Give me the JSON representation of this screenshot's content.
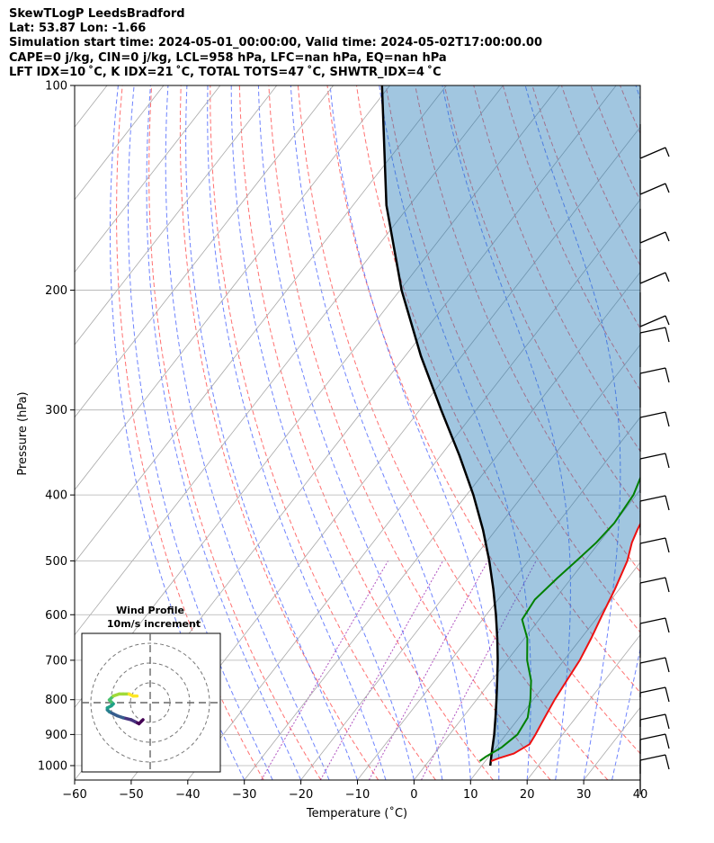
{
  "header": {
    "line1": "SkewTLogP LeedsBradford",
    "line2": "Lat: 53.87   Lon: -1.66",
    "line3": "Simulation start time: 2024-05-01_00:00:00, Valid time: 2024-05-02T17:00:00.00",
    "line4": "CAPE=0 j/kg, CIN=0 j/kg, LCL=958 hPa, LFC=nan hPa, EQ=nan hPa",
    "line5": "LFT IDX=10 ˚C, K IDX=21 ˚C, TOTAL TOTS=47 ˚C, SHWTR_IDX=4 ˚C"
  },
  "chart_data": {
    "type": "line",
    "chart_kind": "skew-T log-P",
    "xlabel": "Temperature (˚C)",
    "ylabel": "Pressure (hPa)",
    "xlim": [
      -60,
      40
    ],
    "ylim": [
      1050,
      100
    ],
    "y_scale": "log",
    "grid": true,
    "x_ticks": [
      "−60",
      "−50",
      "−40",
      "−30",
      "−20",
      "−10",
      "0",
      "10",
      "20",
      "30",
      "40"
    ],
    "y_ticks": [
      {
        "p": 100,
        "label": "100"
      },
      {
        "p": 200,
        "label": "200"
      },
      {
        "p": 300,
        "label": "300"
      },
      {
        "p": 400,
        "label": "400"
      },
      {
        "p": 500,
        "label": "500"
      },
      {
        "p": 600,
        "label": "600"
      },
      {
        "p": 700,
        "label": "700"
      },
      {
        "p": 800,
        "label": "800"
      },
      {
        "p": 900,
        "label": "900"
      },
      {
        "p": 1000,
        "label": "1000"
      }
    ],
    "temperature": [
      [
        985,
        11
      ],
      [
        975,
        12
      ],
      [
        960,
        14
      ],
      [
        930,
        15.5
      ],
      [
        900,
        15.2
      ],
      [
        850,
        14.5
      ],
      [
        800,
        13.8
      ],
      [
        750,
        13.3
      ],
      [
        700,
        12.8
      ],
      [
        650,
        11.8
      ],
      [
        600,
        10.5
      ],
      [
        550,
        9.2
      ],
      [
        500,
        7.5
      ],
      [
        470,
        5.8
      ],
      [
        450,
        5
      ],
      [
        420,
        4
      ],
      [
        400,
        3
      ],
      [
        370,
        1.8
      ],
      [
        350,
        0.5
      ],
      [
        320,
        -1.5
      ],
      [
        300,
        -3
      ],
      [
        270,
        -5
      ],
      [
        250,
        -6.5
      ],
      [
        240,
        -6.2
      ],
      [
        225,
        -4
      ],
      [
        215,
        -2
      ],
      [
        200,
        2
      ],
      [
        185,
        5
      ],
      [
        160,
        8
      ],
      [
        140,
        11
      ],
      [
        120,
        14
      ],
      [
        110,
        15.5
      ],
      [
        100,
        17
      ]
    ],
    "dewpoint": [
      [
        985,
        9
      ],
      [
        970,
        9.5
      ],
      [
        940,
        11
      ],
      [
        900,
        12
      ],
      [
        850,
        11.5
      ],
      [
        800,
        9.5
      ],
      [
        750,
        7
      ],
      [
        700,
        3.5
      ],
      [
        650,
        0.5
      ],
      [
        610,
        -3
      ],
      [
        570,
        -3.5
      ],
      [
        530,
        -2.5
      ],
      [
        500,
        -1.5
      ],
      [
        470,
        -0.5
      ],
      [
        440,
        0
      ],
      [
        400,
        -0.5
      ],
      [
        370,
        -2
      ],
      [
        340,
        -3
      ],
      [
        310,
        -6
      ],
      [
        290,
        -9
      ],
      [
        270,
        -11
      ],
      [
        240,
        -12
      ],
      [
        220,
        -11
      ],
      [
        205,
        -9
      ],
      [
        190,
        -10
      ],
      [
        180,
        -11
      ],
      [
        170,
        -13
      ],
      [
        160,
        -14
      ],
      [
        150,
        -16
      ],
      [
        140,
        -16.5
      ],
      [
        120,
        -16
      ],
      [
        110,
        -15
      ],
      [
        100,
        -14.5
      ]
    ],
    "parcel": [
      [
        1000,
        11.5
      ],
      [
        958,
        10.0
      ],
      [
        900,
        7.9
      ],
      [
        850,
        5.8
      ],
      [
        800,
        3.5
      ],
      [
        750,
        1.0
      ],
      [
        700,
        -1.7
      ],
      [
        650,
        -4.8
      ],
      [
        600,
        -8.3
      ],
      [
        550,
        -12.3
      ],
      [
        500,
        -16.9
      ],
      [
        450,
        -22.3
      ],
      [
        400,
        -28.8
      ],
      [
        350,
        -36.7
      ],
      [
        300,
        -46.2
      ],
      [
        250,
        -57.2
      ],
      [
        200,
        -69.7
      ],
      [
        150,
        -84.1
      ],
      [
        100,
        -101.4
      ]
    ],
    "legend": "none",
    "wind_profile": {
      "title": "Wind Profile",
      "subtitle": "10m/s increment",
      "rings_ms": [
        10,
        20,
        30
      ],
      "hodograph_uv": [
        [
          10,
          -5
        ],
        [
          9,
          -6
        ],
        [
          8,
          -7
        ],
        [
          6,
          -6
        ],
        [
          4,
          -5
        ],
        [
          0,
          -4
        ],
        [
          -3,
          -3
        ],
        [
          -5,
          -2
        ],
        [
          -7,
          -1
        ],
        [
          -8,
          0
        ],
        [
          -8,
          1
        ],
        [
          -6,
          2
        ],
        [
          -5,
          3
        ],
        [
          -6,
          4
        ],
        [
          -7,
          5
        ],
        [
          -5,
          7
        ],
        [
          -2,
          8
        ],
        [
          0,
          8
        ],
        [
          3,
          8
        ],
        [
          5,
          7
        ],
        [
          7,
          7
        ]
      ]
    }
  }
}
